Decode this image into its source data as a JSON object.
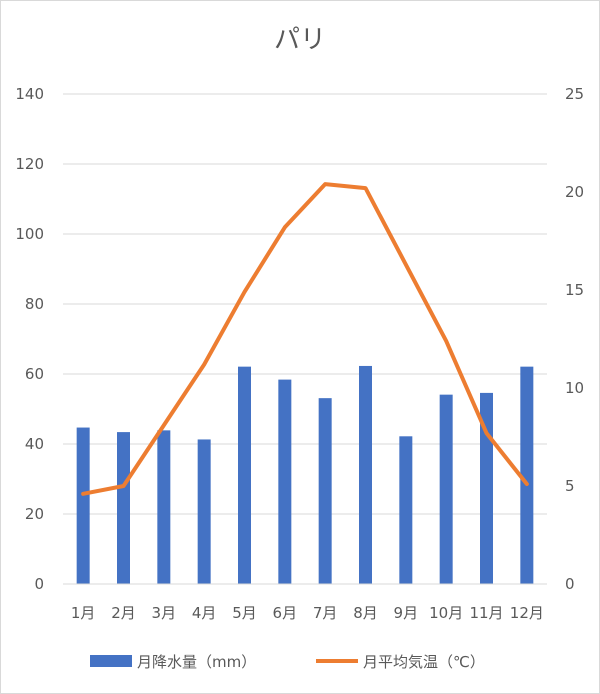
{
  "chart_data": {
    "type": "bar+line",
    "title": "パリ",
    "categories": [
      "1月",
      "2月",
      "3月",
      "4月",
      "5月",
      "6月",
      "7月",
      "8月",
      "9月",
      "10月",
      "11月",
      "12月"
    ],
    "series": [
      {
        "name": "月降水量（mm）",
        "type": "bar",
        "axis": "left",
        "color": "#4472c4",
        "values": [
          44.7,
          43.4,
          43.9,
          41.3,
          62.1,
          58.4,
          53.1,
          62.3,
          42.2,
          54.1,
          54.6,
          62.1
        ]
      },
      {
        "name": "月平均気温（℃）",
        "type": "line",
        "axis": "right",
        "color": "#ed7d31",
        "values": [
          4.6,
          5.0,
          8.1,
          11.2,
          14.9,
          18.2,
          20.4,
          20.2,
          16.3,
          12.4,
          7.7,
          5.1
        ]
      }
    ],
    "y_left": {
      "min": 0,
      "max": 140,
      "step": 20,
      "ticks": [
        "0",
        "20",
        "40",
        "60",
        "80",
        "100",
        "120",
        "140"
      ]
    },
    "y_right": {
      "min": 0,
      "max": 25,
      "step": 5,
      "ticks": [
        "0",
        "5",
        "10",
        "15",
        "20",
        "25"
      ]
    },
    "grid": true,
    "legend_position": "bottom"
  }
}
